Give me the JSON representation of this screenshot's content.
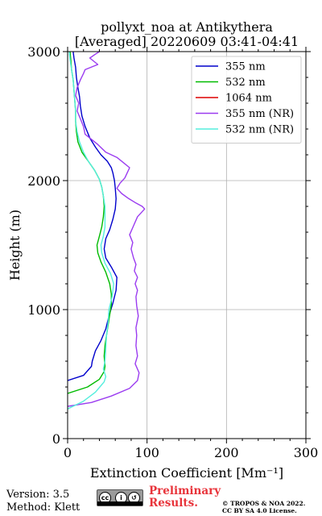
{
  "chart_data": {
    "type": "line",
    "title": "pollyxt_noa at Antikythera",
    "subtitle": "[Averaged] 20220609 03:41-04:41",
    "xlabel": "Extinction Coefficient [Mm⁻¹]",
    "ylabel": "Height (m)",
    "xlim": [
      0,
      300
    ],
    "ylim": [
      0,
      3000
    ],
    "xticks": [
      0,
      100,
      200,
      300
    ],
    "yticks": [
      0,
      1000,
      2000,
      3000
    ],
    "grid": true,
    "legend_position": "top-right",
    "series": [
      {
        "name": "355 nm",
        "color": "#0000cc",
        "points": [
          [
            0,
            450
          ],
          [
            20,
            490
          ],
          [
            30,
            560
          ],
          [
            31,
            600
          ],
          [
            35,
            680
          ],
          [
            42,
            760
          ],
          [
            48,
            850
          ],
          [
            52,
            950
          ],
          [
            57,
            1050
          ],
          [
            61,
            1150
          ],
          [
            62,
            1250
          ],
          [
            55,
            1330
          ],
          [
            48,
            1400
          ],
          [
            46,
            1470
          ],
          [
            48,
            1550
          ],
          [
            53,
            1620
          ],
          [
            57,
            1700
          ],
          [
            60,
            1780
          ],
          [
            61,
            1860
          ],
          [
            60,
            1940
          ],
          [
            59,
            2000
          ],
          [
            57,
            2060
          ],
          [
            55,
            2100
          ],
          [
            50,
            2150
          ],
          [
            42,
            2200
          ],
          [
            35,
            2260
          ],
          [
            28,
            2330
          ],
          [
            22,
            2420
          ],
          [
            18,
            2500
          ],
          [
            16,
            2580
          ],
          [
            15,
            2650
          ],
          [
            13,
            2720
          ],
          [
            11,
            2800
          ],
          [
            10,
            2880
          ],
          [
            8,
            2950
          ],
          [
            7,
            3000
          ]
        ]
      },
      {
        "name": "532 nm",
        "color": "#00bb00",
        "points": [
          [
            0,
            350
          ],
          [
            25,
            400
          ],
          [
            40,
            460
          ],
          [
            46,
            520
          ],
          [
            47,
            560
          ],
          [
            46,
            640
          ],
          [
            47,
            720
          ],
          [
            49,
            800
          ],
          [
            51,
            880
          ],
          [
            53,
            960
          ],
          [
            55,
            1040
          ],
          [
            55,
            1120
          ],
          [
            53,
            1200
          ],
          [
            48,
            1290
          ],
          [
            42,
            1370
          ],
          [
            38,
            1440
          ],
          [
            37,
            1500
          ],
          [
            40,
            1570
          ],
          [
            43,
            1640
          ],
          [
            45,
            1720
          ],
          [
            46,
            1800
          ],
          [
            45,
            1880
          ],
          [
            43,
            1950
          ],
          [
            40,
            2010
          ],
          [
            34,
            2080
          ],
          [
            26,
            2150
          ],
          [
            18,
            2220
          ],
          [
            13,
            2300
          ],
          [
            11,
            2380
          ],
          [
            10,
            2460
          ],
          [
            10,
            2540
          ],
          [
            9,
            2620
          ],
          [
            8,
            2700
          ],
          [
            7,
            2780
          ],
          [
            5,
            2860
          ],
          [
            4,
            2940
          ],
          [
            3,
            3000
          ]
        ]
      },
      {
        "name": "1064 nm",
        "color": "#dd0000",
        "points": []
      },
      {
        "name": "355 nm (NR)",
        "color": "#9b3cf0",
        "points": [
          [
            0,
            250
          ],
          [
            30,
            280
          ],
          [
            55,
            330
          ],
          [
            78,
            390
          ],
          [
            88,
            450
          ],
          [
            90,
            510
          ],
          [
            85,
            580
          ],
          [
            88,
            640
          ],
          [
            86,
            720
          ],
          [
            87,
            800
          ],
          [
            86,
            860
          ],
          [
            89,
            950
          ],
          [
            87,
            1030
          ],
          [
            86,
            1100
          ],
          [
            88,
            1150
          ],
          [
            85,
            1200
          ],
          [
            88,
            1250
          ],
          [
            84,
            1300
          ],
          [
            86,
            1350
          ],
          [
            83,
            1400
          ],
          [
            80,
            1470
          ],
          [
            82,
            1520
          ],
          [
            78,
            1580
          ],
          [
            83,
            1650
          ],
          [
            88,
            1720
          ],
          [
            97,
            1780
          ],
          [
            94,
            1800
          ],
          [
            85,
            1830
          ],
          [
            77,
            1860
          ],
          [
            68,
            1900
          ],
          [
            62,
            1940
          ],
          [
            66,
            1980
          ],
          [
            72,
            2020
          ],
          [
            75,
            2060
          ],
          [
            78,
            2100
          ],
          [
            70,
            2140
          ],
          [
            62,
            2180
          ],
          [
            48,
            2220
          ],
          [
            38,
            2280
          ],
          [
            30,
            2320
          ],
          [
            22,
            2360
          ],
          [
            20,
            2420
          ],
          [
            16,
            2480
          ],
          [
            12,
            2540
          ],
          [
            14,
            2600
          ],
          [
            10,
            2660
          ],
          [
            12,
            2720
          ],
          [
            16,
            2780
          ],
          [
            20,
            2830
          ],
          [
            22,
            2860
          ],
          [
            38,
            2900
          ],
          [
            28,
            2950
          ],
          [
            35,
            2980
          ],
          [
            40,
            3000
          ]
        ]
      },
      {
        "name": "532 nm (NR)",
        "color": "#55eedd",
        "points": [
          [
            0,
            230
          ],
          [
            20,
            290
          ],
          [
            35,
            360
          ],
          [
            46,
            440
          ],
          [
            48,
            480
          ],
          [
            45,
            540
          ],
          [
            47,
            600
          ],
          [
            48,
            700
          ],
          [
            49,
            800
          ],
          [
            51,
            900
          ],
          [
            52,
            1000
          ],
          [
            56,
            1100
          ],
          [
            58,
            1200
          ],
          [
            54,
            1280
          ],
          [
            47,
            1360
          ],
          [
            43,
            1440
          ],
          [
            42,
            1500
          ],
          [
            45,
            1570
          ],
          [
            47,
            1640
          ],
          [
            47,
            1720
          ],
          [
            47,
            1800
          ],
          [
            45,
            1880
          ],
          [
            43,
            1950
          ],
          [
            40,
            2010
          ],
          [
            34,
            2080
          ],
          [
            26,
            2150
          ],
          [
            20,
            2220
          ],
          [
            15,
            2300
          ],
          [
            12,
            2380
          ],
          [
            10,
            2460
          ],
          [
            10,
            2540
          ],
          [
            9,
            2620
          ],
          [
            8,
            2700
          ],
          [
            7,
            2780
          ],
          [
            5,
            2860
          ],
          [
            3,
            2940
          ],
          [
            2,
            3000
          ]
        ]
      }
    ]
  },
  "footer": {
    "version": "Version: 3.5",
    "method": "Method: Klett",
    "preliminary_line1": "Preliminary",
    "preliminary_line2": "Results.",
    "copyright_line1": "© TROPOS & NOA 2022.",
    "copyright_line2": "CC BY SA 4.0 License."
  }
}
